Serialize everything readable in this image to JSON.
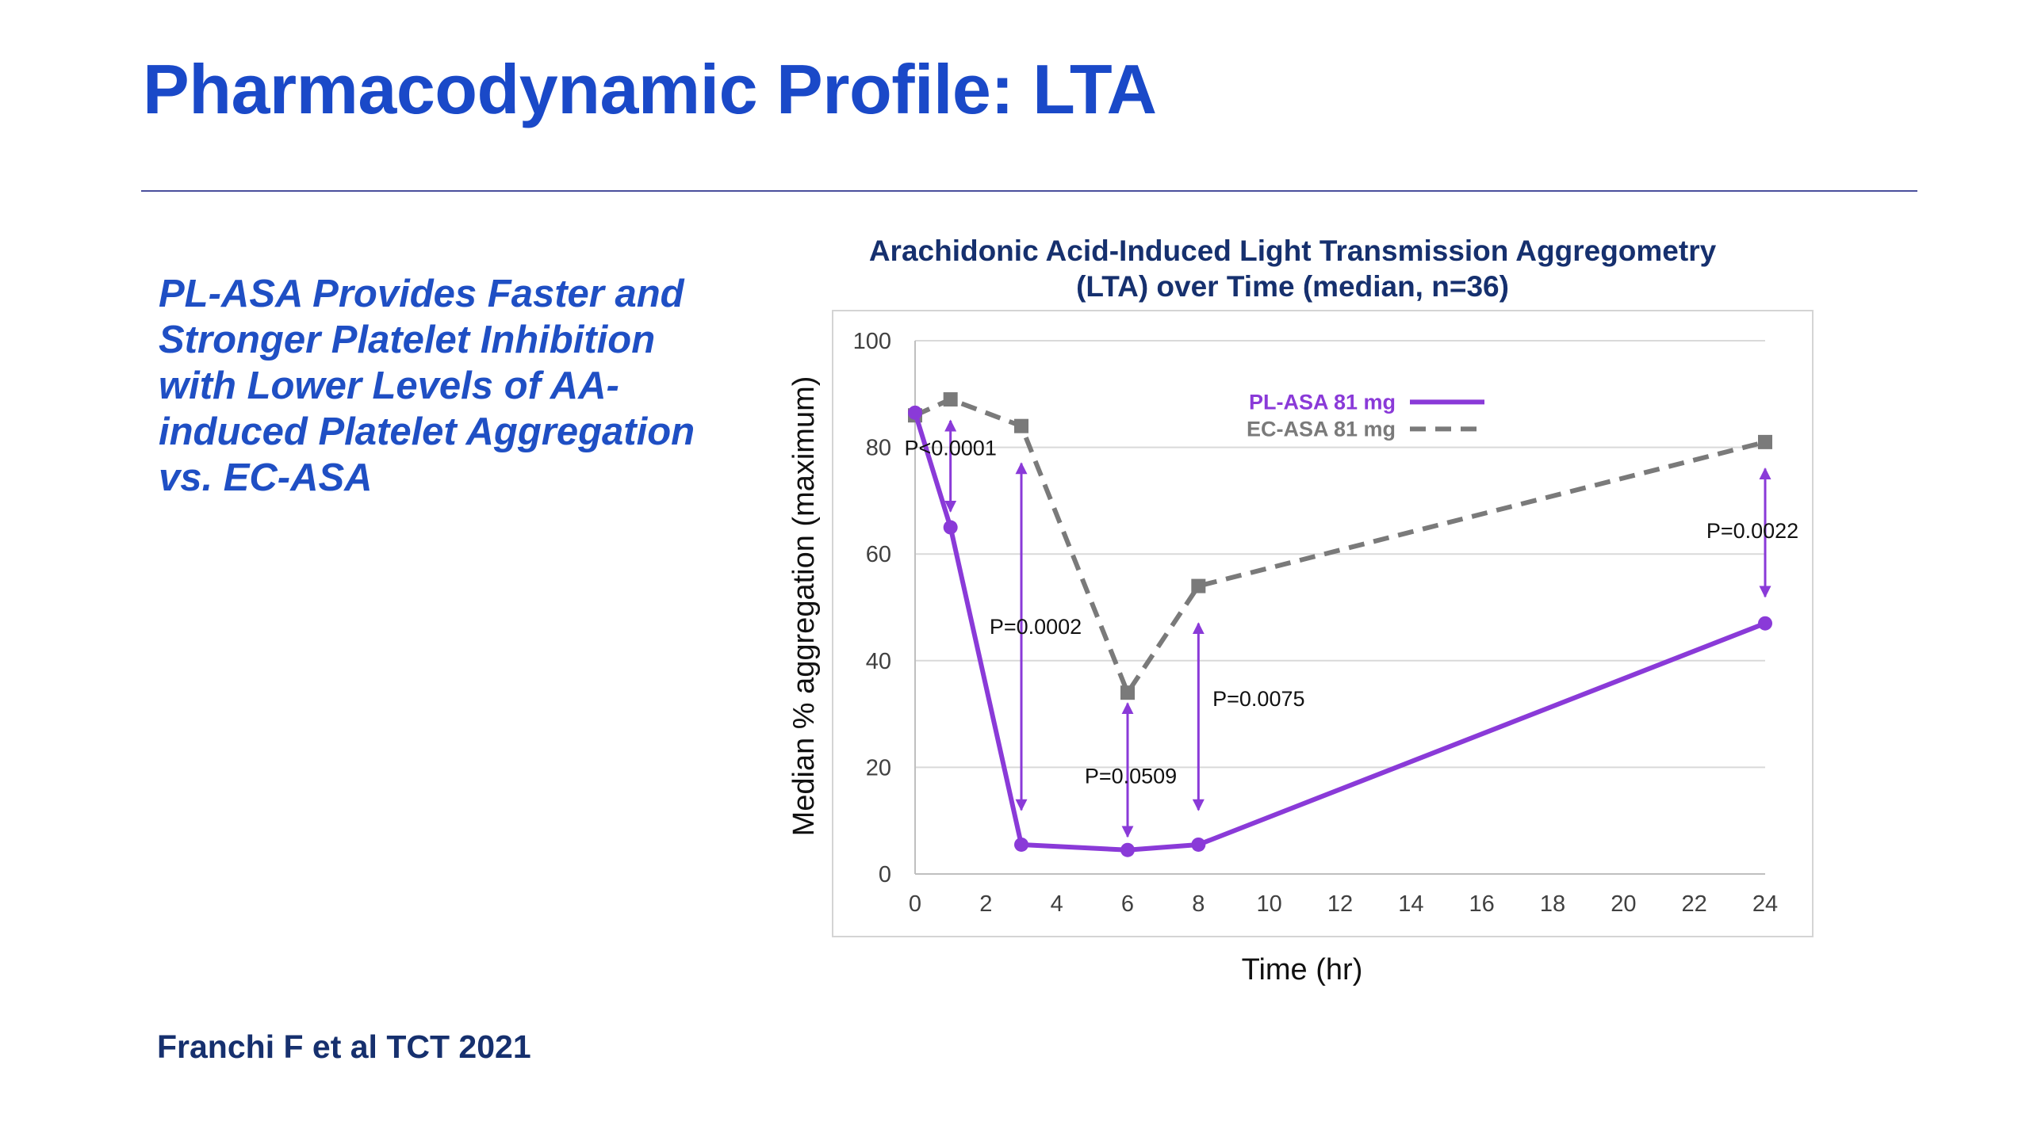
{
  "slide": {
    "title": "Pharmacodynamic Profile: LTA",
    "takeaway": [
      "PL-ASA Provides Faster and",
      "Stronger Platelet Inhibition",
      "with Lower Levels of AA-",
      "induced Platelet Aggregation",
      "vs. EC-ASA"
    ],
    "citation": "Franchi F et al TCT 2021"
  },
  "chart_data": {
    "type": "line",
    "title_lines": [
      "Arachidonic Acid-Induced Light  Transmission Aggregometry",
      "(LTA) over Time (median, n=36)"
    ],
    "xlabel": "Time (hr)",
    "ylabel": "Median % aggregation (maximum)",
    "xlim": [
      0,
      24
    ],
    "ylim": [
      0,
      100
    ],
    "xticks": [
      0,
      2,
      4,
      6,
      8,
      10,
      12,
      14,
      16,
      18,
      20,
      22,
      24
    ],
    "yticks": [
      0,
      20,
      40,
      60,
      80,
      100
    ],
    "grid": "horizontal",
    "legend_position": "top-right",
    "series": [
      {
        "name": "PL-ASA 81 mg",
        "color": "#8a3ad8",
        "marker": "circle",
        "dash": "solid",
        "x": [
          0,
          1,
          3,
          6,
          8,
          24
        ],
        "y": [
          86.5,
          65,
          5.5,
          4.5,
          5.5,
          47
        ]
      },
      {
        "name": "EC-ASA 81 mg",
        "color": "#7a7a7a",
        "marker": "square",
        "dash": "dashed",
        "x": [
          0,
          1,
          3,
          6,
          8,
          24
        ],
        "y": [
          86,
          89,
          84,
          34,
          54,
          81
        ]
      }
    ],
    "annotations": [
      {
        "label": "P<0.0001",
        "x": 1,
        "y_top": 85,
        "y_bottom": 68
      },
      {
        "label": "P=0.0002",
        "x": 3,
        "y_top": 77,
        "y_bottom": 12
      },
      {
        "label": "P=0.0509",
        "x": 6,
        "y_top": 32,
        "y_bottom": 7
      },
      {
        "label": "P=0.0075",
        "x": 8,
        "y_top": 47,
        "y_bottom": 12
      },
      {
        "label": "P=0.0022",
        "x": 24,
        "y_top": 76,
        "y_bottom": 52
      }
    ]
  },
  "colors": {
    "title": "#1a49c8",
    "takeaway": "#1f4fc4",
    "navy": "#16306e",
    "arrow": "#8a3ad8"
  }
}
